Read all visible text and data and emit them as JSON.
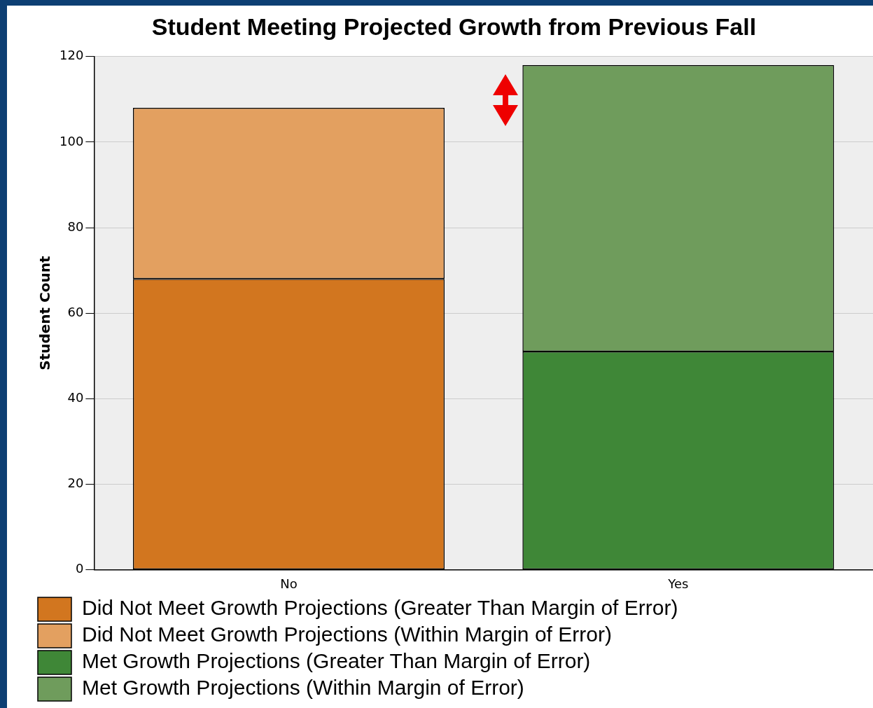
{
  "chart_data": {
    "type": "bar",
    "title": "Student Meeting Projected Growth from Previous Fall",
    "ylabel": "Student Count",
    "categories": [
      "No",
      "Yes"
    ],
    "stacked": true,
    "series": [
      {
        "name": "Did Not Meet Growth Projections (Greater Than Margin of Error)",
        "color": "#d2761f",
        "values": [
          68,
          null
        ]
      },
      {
        "name": "Did Not Meet Growth Projections (Within Margin of Error)",
        "color": "#e3a060",
        "values": [
          40,
          null
        ]
      },
      {
        "name": "Met Growth Projections (Greater Than Margin of Error)",
        "color": "#3f8737",
        "values": [
          null,
          51
        ]
      },
      {
        "name": "Met Growth Projections (Within Margin of Error)",
        "color": "#6f9c5c",
        "values": [
          null,
          67
        ]
      }
    ],
    "ylim": [
      0,
      120
    ],
    "yticks": [
      0,
      20,
      40,
      60,
      80,
      100,
      120
    ],
    "grid": "y",
    "legend": "bottom"
  }
}
